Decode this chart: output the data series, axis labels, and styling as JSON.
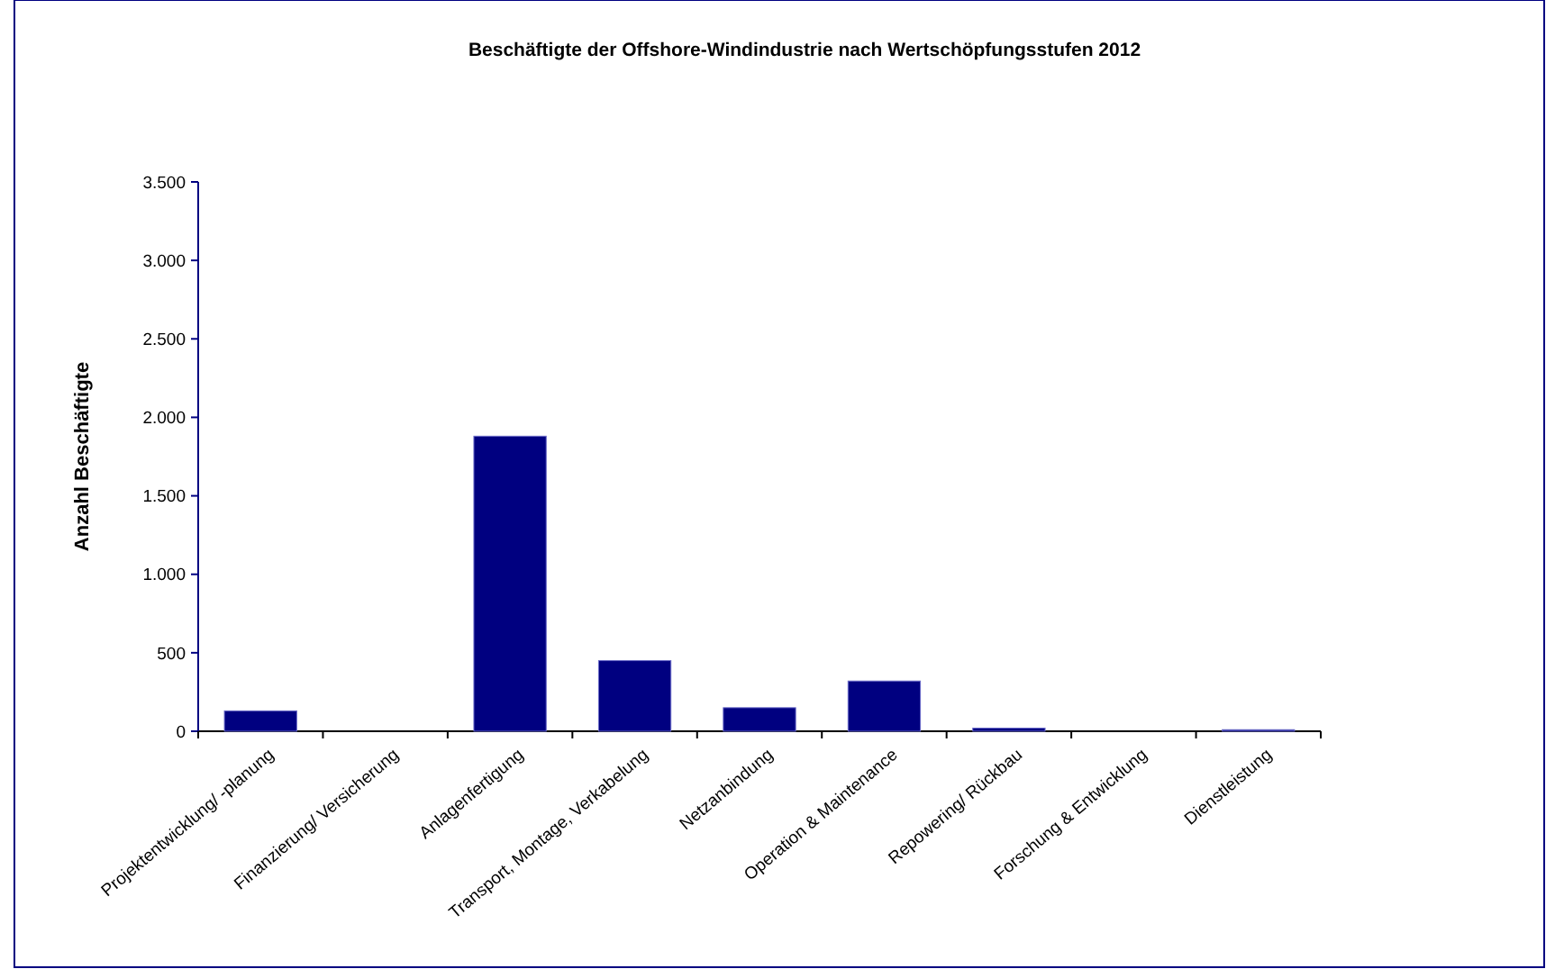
{
  "chart_data": {
    "type": "bar",
    "title": "Beschäftigte der Offshore-Windindustrie nach Wertschöpfungsstufen 2012",
    "ylabel": "Anzahl Beschäftigte",
    "categories": [
      "Projektentwicklung/ -planung",
      "Finanzierung/ Versicherung",
      "Anlagenfertigung",
      "Transport, Montage, Verkabelung",
      "Netzanbindung",
      "Operation & Maintenance",
      "Repowering/ Rückbau",
      "Forschung & Entwicklung",
      "Dienstleistung"
    ],
    "values": [
      130,
      0,
      1880,
      450,
      150,
      320,
      20,
      0,
      10
    ],
    "color": "#000080",
    "ylim": [
      0,
      3500
    ],
    "yticks": [
      {
        "value": 0,
        "label": "0"
      },
      {
        "value": 500,
        "label": "500"
      },
      {
        "value": 1000,
        "label": "1.000"
      },
      {
        "value": 1500,
        "label": "1.500"
      },
      {
        "value": 2000,
        "label": "2.000"
      },
      {
        "value": 2500,
        "label": "2.500"
      },
      {
        "value": 3000,
        "label": "3.000"
      },
      {
        "value": 3500,
        "label": "3.500"
      }
    ],
    "grid": false
  }
}
